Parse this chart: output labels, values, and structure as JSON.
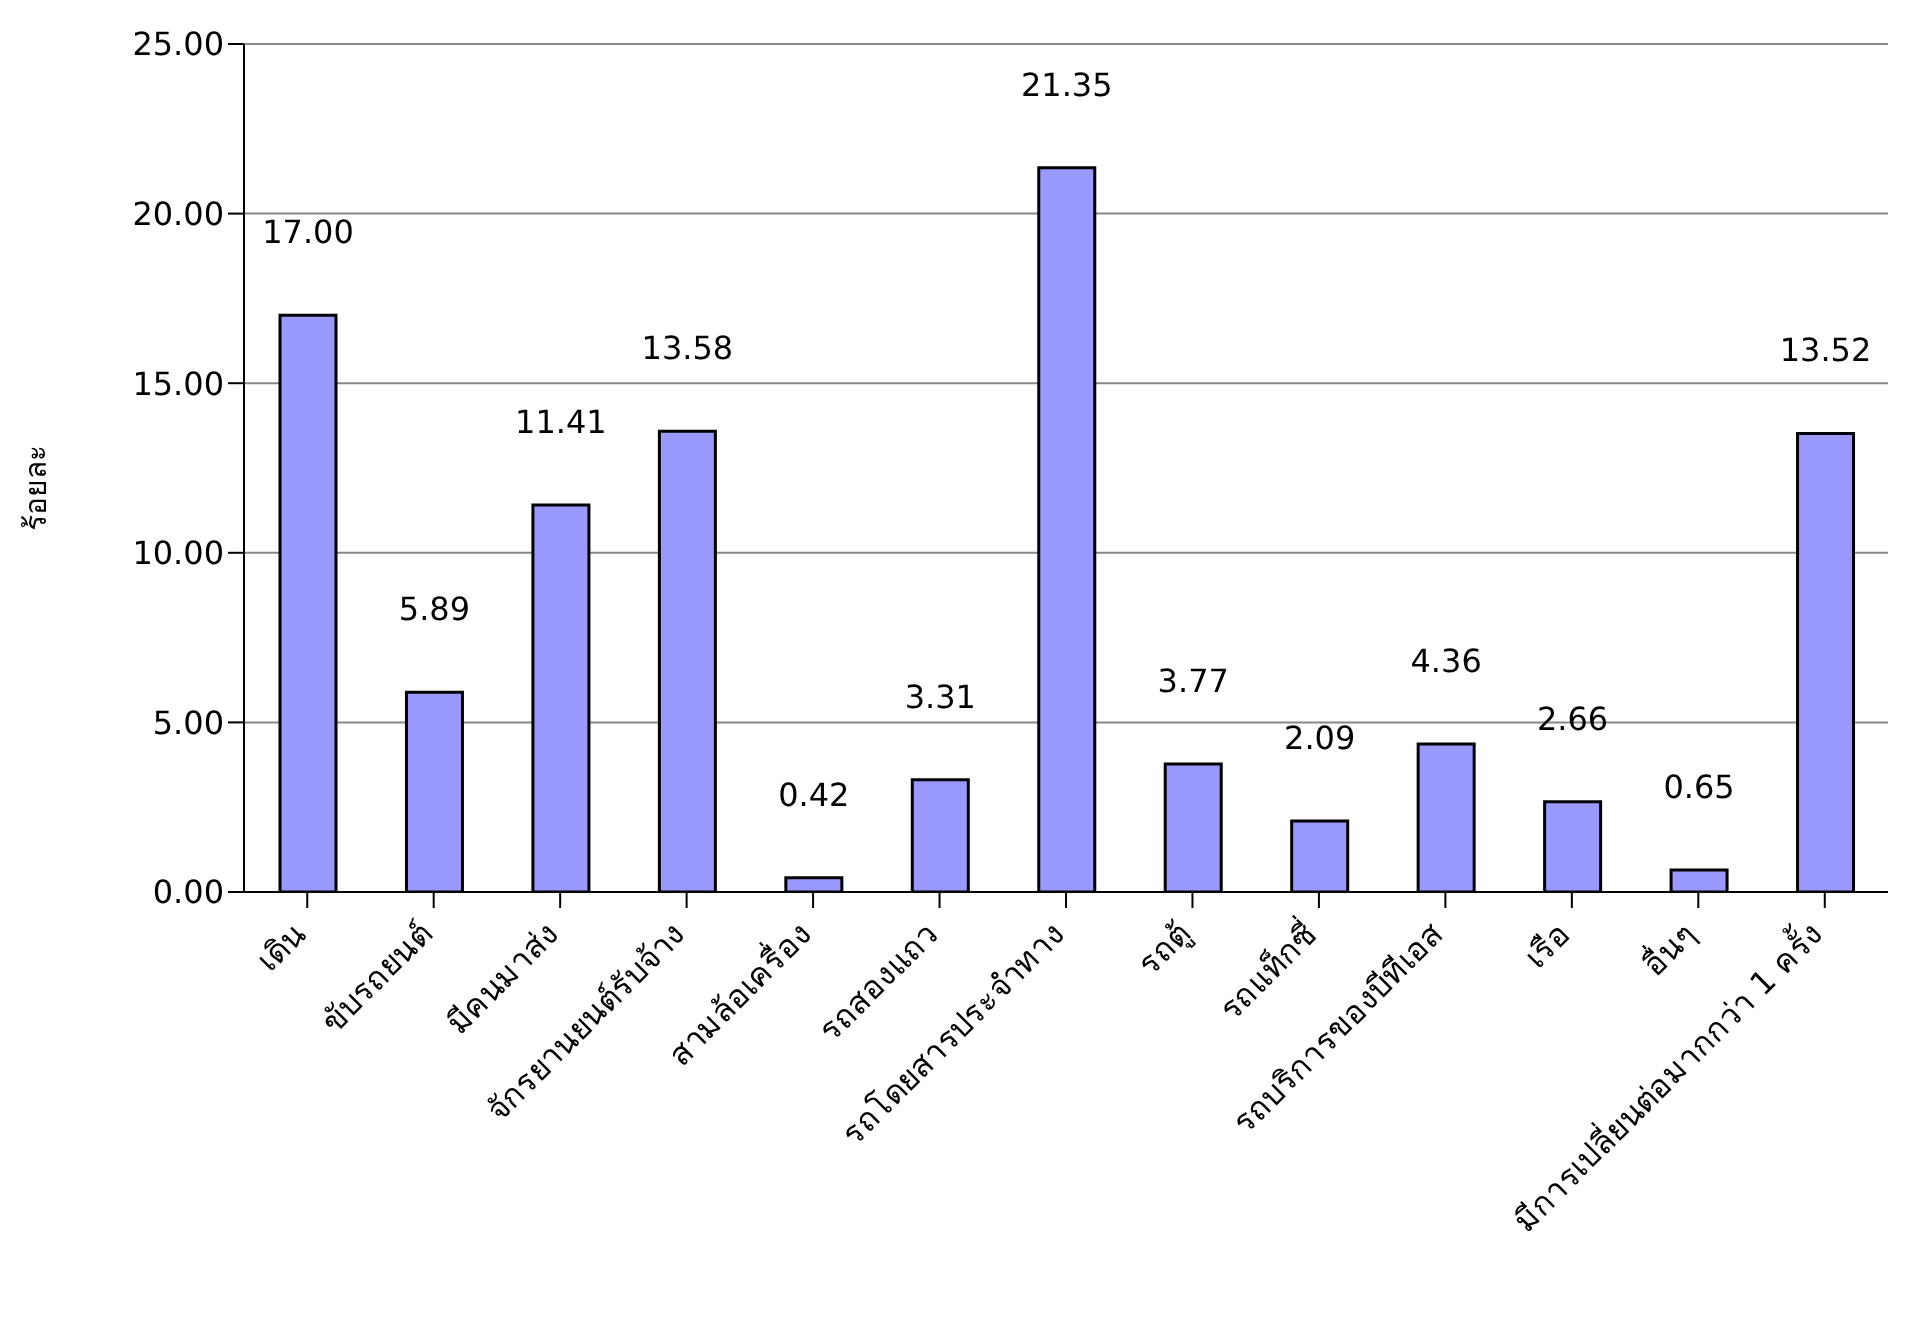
{
  "chart_data": {
    "type": "bar",
    "ylabel": "ร้อยละ",
    "categories": [
      "เดิน",
      "ขับรถยนต์",
      "มีคนมาส่ง",
      "จักรยานยนต์รับจ้าง",
      "สามล้อเครื่อง",
      "รถสองแถว",
      "รถโดยสารประจำทาง",
      "รถตู้",
      "รถแท็กซี่",
      "รถบริการของบีทีเอส",
      "เรือ",
      "อื่นๆ",
      "มีการเปลี่ยนต่อมากกว่า 1 ครั้ง"
    ],
    "values": [
      17.0,
      5.89,
      11.41,
      13.58,
      0.42,
      3.31,
      21.35,
      3.77,
      2.09,
      4.36,
      2.66,
      0.65,
      13.52
    ],
    "value_labels": [
      "17.00",
      "5.89",
      "11.41",
      "13.58",
      "0.42",
      "3.31",
      "21.35",
      "3.77",
      "2.09",
      "4.36",
      "2.66",
      "0.65",
      "13.52"
    ],
    "color": "#9999ff",
    "ylim": [
      0,
      25
    ],
    "yticks": [
      {
        "value": 0,
        "label": "0.00"
      },
      {
        "value": 5,
        "label": "5.00"
      },
      {
        "value": 10,
        "label": "10.00"
      },
      {
        "value": 15,
        "label": "15.00"
      },
      {
        "value": 20,
        "label": "20.00"
      },
      {
        "value": 25,
        "label": "25.00"
      }
    ],
    "grid": "y",
    "legend": false
  }
}
